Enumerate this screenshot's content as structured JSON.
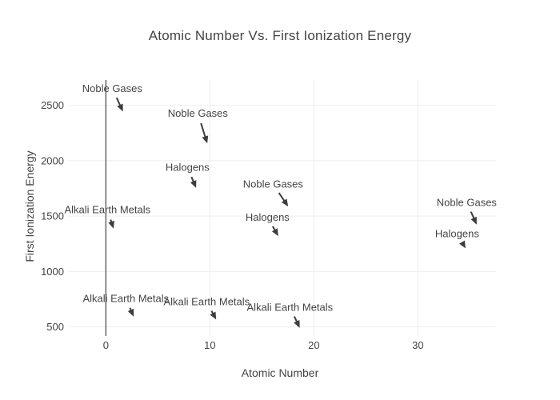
{
  "chart_data": {
    "type": "scatter",
    "title": "Atomic Number Vs. First Ionization Energy",
    "xlabel": "Atomic Number",
    "ylabel": "First Ionization Energy",
    "xlim": [
      -3.64,
      37.51
    ],
    "ylim": [
      417.6,
      2728.9
    ],
    "xticks": [
      0,
      10,
      20,
      30
    ],
    "yticks": [
      500,
      1000,
      1500,
      2000,
      2500
    ],
    "grid": true,
    "x_zeroline": true,
    "markers_visible": false,
    "legend": "none",
    "series": [
      {
        "name": "Noble Gases",
        "points": [
          {
            "x": 2,
            "y": 2372
          },
          {
            "x": 10,
            "y": 2081
          },
          {
            "x": 18,
            "y": 1521
          },
          {
            "x": 36,
            "y": 1351
          }
        ]
      },
      {
        "name": "Halogens",
        "points": [
          {
            "x": 9,
            "y": 1681
          },
          {
            "x": 17,
            "y": 1251
          },
          {
            "x": 35,
            "y": 1140
          }
        ]
      },
      {
        "name": "Alkali Earth Metals",
        "points": [
          {
            "x": 1,
            "y": 1312
          },
          {
            "x": 3,
            "y": 520
          },
          {
            "x": 11,
            "y": 496
          },
          {
            "x": 19,
            "y": 419
          }
        ]
      }
    ],
    "annotations": [
      {
        "label": "Noble Gases",
        "x": 2,
        "y": 2372,
        "ax": -18,
        "ay": -39
      },
      {
        "label": "Noble Gases",
        "x": 10,
        "y": 2081,
        "ax": -15,
        "ay": -48
      },
      {
        "label": "Halogens",
        "x": 9,
        "y": 1681,
        "ax": -15,
        "ay": -36
      },
      {
        "label": "Noble Gases",
        "x": 18,
        "y": 1521,
        "ax": -25,
        "ay": -37
      },
      {
        "label": "Halogens",
        "x": 17,
        "y": 1251,
        "ax": -19,
        "ay": -33
      },
      {
        "label": "Noble Gases",
        "x": 36,
        "y": 1351,
        "ax": -17,
        "ay": -38
      },
      {
        "label": "Halogens",
        "x": 35,
        "y": 1140,
        "ax": -16,
        "ay": -28
      },
      {
        "label": "Alkali Earth Metals",
        "x": 1,
        "y": 1312,
        "ax": -11,
        "ay": -34
      },
      {
        "label": "Alkali Earth Metals",
        "x": 3,
        "y": 520,
        "ax": -14,
        "ay": -33
      },
      {
        "label": "Alkali Earth Metals",
        "x": 11,
        "y": 496,
        "ax": -17,
        "ay": -32
      },
      {
        "label": "Alkali Earth Metals",
        "x": 19,
        "y": 419,
        "ax": -17,
        "ay": -36
      }
    ],
    "style": {
      "font_color": "#444444",
      "tick_color": "#444444",
      "grid_color": "#eeeeee",
      "zeroline_color": "#444444",
      "arrow_color": "#3d3d3d",
      "background": "#ffffff"
    }
  }
}
